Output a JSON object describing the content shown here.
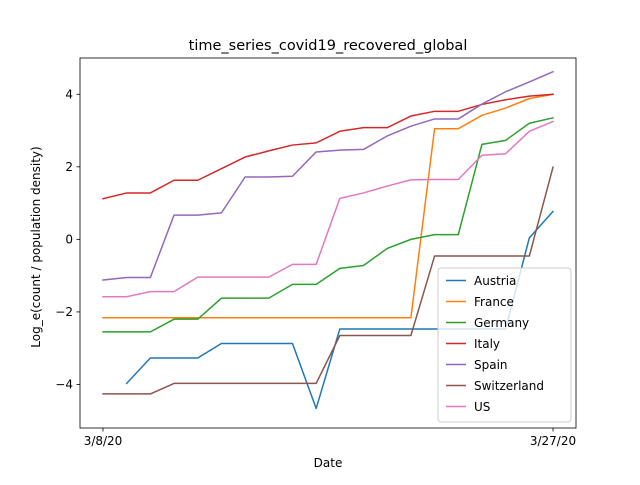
{
  "chart_data": {
    "type": "line",
    "title": "time_series_covid19_recovered_global",
    "xlabel": "Date",
    "ylabel": "Log_e(count / population density)",
    "x_tick_labels": [
      "3/8/20",
      "3/27/20"
    ],
    "x": [
      "3/8/20",
      "3/9/20",
      "3/10/20",
      "3/11/20",
      "3/12/20",
      "3/13/20",
      "3/14/20",
      "3/15/20",
      "3/16/20",
      "3/17/20",
      "3/18/20",
      "3/19/20",
      "3/20/20",
      "3/21/20",
      "3/22/20",
      "3/23/20",
      "3/24/20",
      "3/25/20",
      "3/26/20",
      "3/27/20"
    ],
    "y_ticks": [
      -4,
      -2,
      0,
      2,
      4
    ],
    "ylim": [
      -5.2,
      5.0
    ],
    "grid": false,
    "legend_position": "lower-right",
    "series": [
      {
        "name": "Austria",
        "color": "#1f77b4",
        "values": [
          null,
          -3.97,
          -3.27,
          -3.27,
          -3.27,
          -2.87,
          -2.87,
          -2.87,
          -2.87,
          -4.66,
          -2.47,
          -2.47,
          -2.47,
          -2.47,
          -2.47,
          -2.47,
          -2.47,
          -2.47,
          0.04,
          0.77
        ]
      },
      {
        "name": "France",
        "color": "#ff7f0e",
        "values": [
          -2.16,
          -2.16,
          -2.16,
          -2.16,
          -2.16,
          -2.16,
          -2.16,
          -2.16,
          -2.16,
          -2.16,
          -2.16,
          -2.16,
          -2.16,
          -2.16,
          3.05,
          3.05,
          3.42,
          3.62,
          3.88,
          4.0
        ]
      },
      {
        "name": "Germany",
        "color": "#2ca02c",
        "values": [
          -2.55,
          -2.55,
          -2.55,
          -2.2,
          -2.2,
          -1.62,
          -1.62,
          -1.62,
          -1.24,
          -1.24,
          -0.8,
          -0.72,
          -0.25,
          0.0,
          0.13,
          0.13,
          2.62,
          2.73,
          3.2,
          3.35
        ]
      },
      {
        "name": "Italy",
        "color": "#d62728",
        "values": [
          1.12,
          1.28,
          1.28,
          1.63,
          1.63,
          1.95,
          2.27,
          2.44,
          2.6,
          2.66,
          2.98,
          3.08,
          3.08,
          3.4,
          3.53,
          3.53,
          3.72,
          3.85,
          3.95,
          4.0
        ]
      },
      {
        "name": "Spain",
        "color": "#9467bd",
        "values": [
          -1.12,
          -1.05,
          -1.05,
          0.67,
          0.67,
          0.73,
          1.72,
          1.72,
          1.74,
          2.41,
          2.46,
          2.48,
          2.85,
          3.12,
          3.32,
          3.32,
          3.73,
          4.07,
          4.34,
          4.62
        ]
      },
      {
        "name": "Switzerland",
        "color": "#8c564b",
        "values": [
          -4.26,
          -4.26,
          -4.26,
          -3.97,
          -3.97,
          -3.97,
          -3.97,
          -3.97,
          -3.97,
          -3.97,
          -2.65,
          -2.65,
          -2.65,
          -2.65,
          -0.46,
          -0.46,
          -0.46,
          -0.46,
          -0.46,
          1.99
        ]
      },
      {
        "name": "US",
        "color": "#e377c2",
        "values": [
          -1.58,
          -1.58,
          -1.44,
          -1.44,
          -1.04,
          -1.04,
          -1.04,
          -1.04,
          -0.69,
          -0.69,
          1.13,
          1.28,
          1.47,
          1.64,
          1.65,
          1.65,
          2.32,
          2.36,
          2.98,
          3.25
        ]
      }
    ]
  }
}
